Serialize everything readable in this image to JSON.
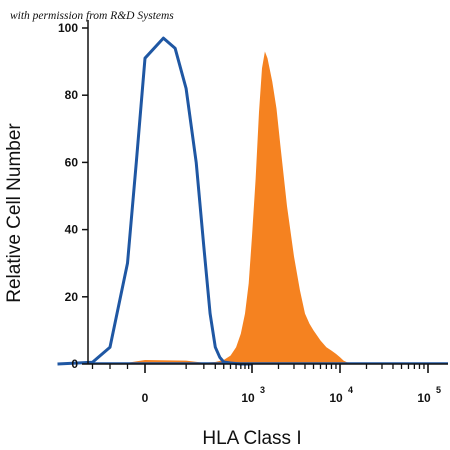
{
  "watermark": "with permission from R&D Systems",
  "chart_data": {
    "type": "area",
    "xlabel": "HLA Class I",
    "ylabel": "Relative Cell Number",
    "x_scale": "biexponential",
    "ylim": [
      0,
      100
    ],
    "y_ticks": [
      0,
      20,
      40,
      60,
      80,
      100
    ],
    "x_ticks": [
      {
        "value": 0,
        "base": "0",
        "exp": ""
      },
      {
        "value": 1000,
        "base": "10",
        "exp": "3"
      },
      {
        "value": 10000,
        "base": "10",
        "exp": "4"
      },
      {
        "value": 100000,
        "base": "10",
        "exp": "5"
      }
    ],
    "grid": false,
    "series": [
      {
        "style": "outline",
        "color": "#1f57a3",
        "x": [
          -500,
          -300,
          -200,
          -100,
          -50,
          0,
          30,
          60,
          100,
          150,
          200,
          250,
          300,
          350,
          400,
          500,
          700,
          1000
        ],
        "y": [
          0,
          0.5,
          5,
          30,
          60,
          91,
          97,
          94,
          82,
          60,
          35,
          15,
          5,
          2,
          0.6,
          0.3,
          0,
          0
        ]
      },
      {
        "style": "filled",
        "color": "#f58220",
        "x": [
          -100,
          0,
          100,
          200,
          300,
          400,
          500,
          600,
          700,
          800,
          900,
          1000,
          1100,
          1200,
          1300,
          1400,
          1500,
          1700,
          1900,
          2100,
          2500,
          3000,
          3500,
          4000,
          4500,
          5000,
          6000,
          7000,
          8000,
          9000,
          10000,
          11000,
          12000,
          15000,
          20000
        ],
        "y": [
          0.4,
          1.2,
          1.0,
          0.4,
          0.6,
          1.2,
          2.5,
          5,
          9,
          15,
          24,
          38,
          55,
          75,
          88,
          93,
          91,
          84,
          76,
          65,
          47,
          32,
          22,
          15,
          12,
          10,
          7,
          5,
          4,
          3,
          2,
          1,
          0.5,
          0.2,
          0
        ]
      }
    ]
  }
}
